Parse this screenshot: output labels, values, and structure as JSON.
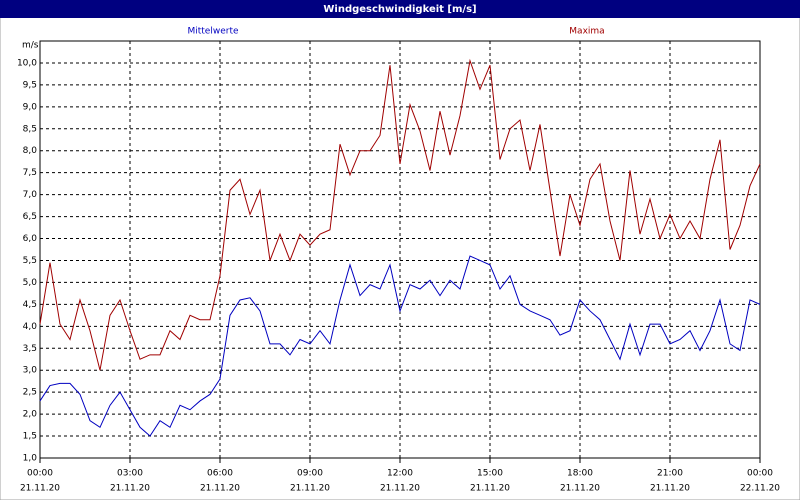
{
  "chart_data": {
    "type": "line",
    "title": "Windgeschwindigkeit [m/s]",
    "y_label": "m/s",
    "x": [
      0,
      20,
      40,
      60,
      80,
      100,
      120,
      140,
      160,
      180,
      200,
      220,
      240,
      260,
      280,
      300,
      320,
      340,
      360,
      380,
      400,
      420,
      440,
      460,
      480,
      500,
      520,
      540,
      560,
      580,
      600,
      620,
      640,
      660,
      680,
      700,
      720,
      740,
      760,
      780,
      800,
      820,
      840,
      860,
      880,
      900,
      920,
      940,
      960,
      980,
      1000,
      1020,
      1040,
      1060,
      1080,
      1100,
      1120,
      1140,
      1160,
      1180,
      1200,
      1220,
      1240,
      1260,
      1280,
      1300,
      1320,
      1340,
      1360,
      1380,
      1400,
      1420,
      1440
    ],
    "series": [
      {
        "name": "Mittelwerte",
        "color": "#0000c0",
        "values": [
          2.3,
          2.65,
          2.7,
          2.7,
          2.45,
          1.85,
          1.7,
          2.2,
          2.5,
          2.1,
          1.7,
          1.5,
          1.85,
          1.7,
          2.2,
          2.1,
          2.3,
          2.45,
          2.8,
          4.25,
          4.6,
          4.65,
          4.35,
          3.6,
          3.6,
          3.35,
          3.7,
          3.6,
          3.9,
          3.6,
          4.6,
          5.4,
          4.7,
          4.95,
          4.85,
          5.4,
          4.35,
          4.95,
          4.85,
          5.05,
          4.7,
          5.05,
          4.85,
          5.6,
          5.5,
          5.4,
          4.85,
          5.15,
          4.5,
          4.35,
          4.25,
          4.15,
          3.8,
          3.9,
          4.6,
          4.35,
          4.15,
          3.7,
          3.25,
          4.05,
          3.35,
          4.05,
          4.05,
          3.6,
          3.7,
          3.9,
          3.45,
          3.9,
          4.6,
          3.6,
          3.45,
          4.6,
          4.5
        ]
      },
      {
        "name": "Maxima",
        "color": "#a00000",
        "values": [
          4.05,
          5.45,
          4.05,
          3.7,
          4.6,
          3.9,
          3.0,
          4.25,
          4.6,
          3.9,
          3.25,
          3.35,
          3.35,
          3.9,
          3.7,
          4.25,
          4.15,
          4.15,
          5.15,
          7.1,
          7.35,
          6.55,
          7.1,
          5.5,
          6.1,
          5.5,
          6.1,
          5.85,
          6.1,
          6.2,
          8.15,
          7.45,
          8.0,
          8.0,
          8.35,
          9.95,
          7.7,
          9.05,
          8.45,
          7.55,
          8.9,
          7.9,
          8.8,
          10.05,
          9.4,
          9.95,
          7.8,
          8.5,
          8.7,
          7.55,
          8.6,
          7.1,
          5.6,
          7.0,
          6.3,
          7.35,
          7.7,
          6.4,
          5.5,
          7.55,
          6.1,
          6.9,
          6.0,
          6.55,
          6.0,
          6.4,
          6.0,
          7.35,
          8.25,
          5.75,
          6.3,
          7.2,
          7.7
        ]
      }
    ],
    "xlim": [
      0,
      1440
    ],
    "xticks": [
      {
        "value": 0,
        "label": "00:00"
      },
      {
        "value": 180,
        "label": "03:00"
      },
      {
        "value": 360,
        "label": "06:00"
      },
      {
        "value": 540,
        "label": "09:00"
      },
      {
        "value": 720,
        "label": "12:00"
      },
      {
        "value": 900,
        "label": "15:00"
      },
      {
        "value": 1080,
        "label": "18:00"
      },
      {
        "value": 1260,
        "label": "21:00"
      },
      {
        "value": 1440,
        "label": "00:00"
      }
    ],
    "xtick_dates": [
      "21.11.20",
      "21.11.20",
      "21.11.20",
      "21.11.20",
      "21.11.20",
      "21.11.20",
      "21.11.20",
      "21.11.20",
      "22.11.20"
    ],
    "ylim": [
      1,
      10.5
    ],
    "yticks": [
      {
        "value": 1,
        "label": "1,0"
      },
      {
        "value": 1.5,
        "label": "1,5"
      },
      {
        "value": 2,
        "label": "2,0"
      },
      {
        "value": 2.5,
        "label": "2,5"
      },
      {
        "value": 3,
        "label": "3,0"
      },
      {
        "value": 3.5,
        "label": "3,5"
      },
      {
        "value": 4,
        "label": "4,0"
      },
      {
        "value": 4.5,
        "label": "4,5"
      },
      {
        "value": 5,
        "label": "5,0"
      },
      {
        "value": 5.5,
        "label": "5,5"
      },
      {
        "value": 6,
        "label": "6,0"
      },
      {
        "value": 6.5,
        "label": "6,5"
      },
      {
        "value": 7,
        "label": "7,0"
      },
      {
        "value": 7.5,
        "label": "7,5"
      },
      {
        "value": 8,
        "label": "8,0"
      },
      {
        "value": 8.5,
        "label": "8,5"
      },
      {
        "value": 9,
        "label": "9,0"
      },
      {
        "value": 9.5,
        "label": "9,5"
      },
      {
        "value": 10,
        "label": "10,0"
      }
    ],
    "grid": true
  }
}
